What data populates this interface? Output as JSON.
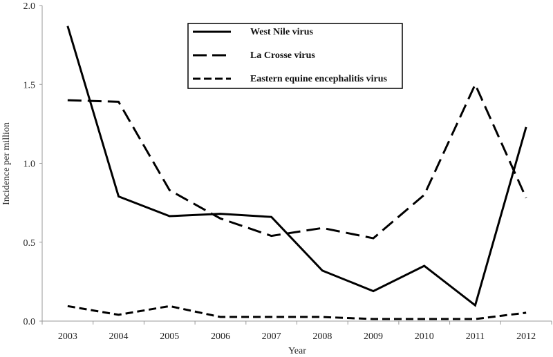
{
  "chart_data": {
    "type": "line",
    "title": "",
    "xlabel": "Year",
    "ylabel": "Incidence per million",
    "ylim": [
      0,
      2.0
    ],
    "yticks": [
      "0.0",
      "0.5",
      "1.0",
      "1.5",
      "2.0"
    ],
    "categories": [
      "2003",
      "2004",
      "2005",
      "2006",
      "2007",
      "2008",
      "2009",
      "2010",
      "2011",
      "2012"
    ],
    "legend_position": "top-center",
    "grid": false,
    "series": [
      {
        "name": "West Nile virus",
        "style": "solid",
        "values": [
          1.87,
          0.79,
          0.665,
          0.68,
          0.66,
          0.32,
          0.19,
          0.35,
          0.1,
          1.23
        ]
      },
      {
        "name": "La Crosse virus",
        "style": "long-dash",
        "values": [
          1.4,
          1.39,
          0.83,
          0.65,
          0.54,
          0.59,
          0.525,
          0.8,
          1.5,
          0.78
        ]
      },
      {
        "name": "Eastern equine encephalitis virus",
        "style": "short-dash",
        "values": [
          0.095,
          0.04,
          0.095,
          0.026,
          0.026,
          0.026,
          0.013,
          0.013,
          0.013,
          0.053
        ]
      }
    ],
    "colors": {
      "line": "#000000",
      "axis": "#999999"
    }
  }
}
